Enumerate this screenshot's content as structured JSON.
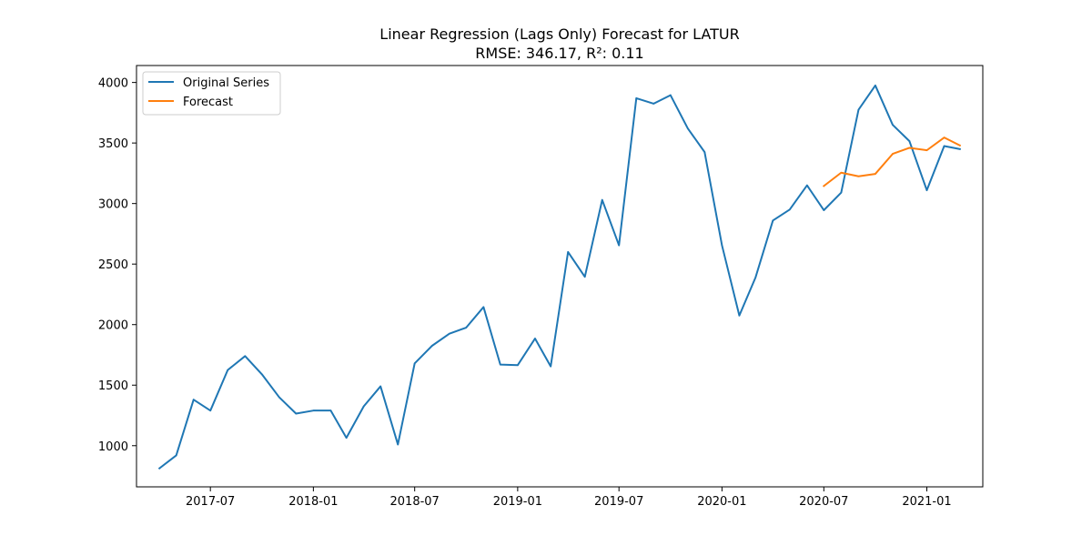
{
  "chart_data": {
    "type": "line",
    "title": "Linear Regression (Lags Only) Forecast for LATUR",
    "subtitle": "RMSE: 346.17, R²: 0.11",
    "xlabel": "",
    "ylabel": "",
    "x_axis_type": "date",
    "xlim": [
      "2017-02-19",
      "2021-04-11"
    ],
    "ylim": [
      660,
      4140
    ],
    "grid": false,
    "legend_position": "top-left",
    "x_tick_labels": [
      "2017-07",
      "2018-01",
      "2018-07",
      "2019-01",
      "2019-07",
      "2020-01",
      "2020-07",
      "2021-01"
    ],
    "x_ticks": [
      "2017-07-01",
      "2018-01-01",
      "2018-07-01",
      "2019-01-01",
      "2019-07-01",
      "2020-01-01",
      "2020-07-01",
      "2021-01-01"
    ],
    "y_ticks": [
      1000,
      1500,
      2000,
      2500,
      3000,
      3500,
      4000
    ],
    "y_tick_labels": [
      "1000",
      "1500",
      "2000",
      "2500",
      "3000",
      "3500",
      "4000"
    ],
    "series": [
      {
        "name": "Original Series",
        "color": "#1f77b4",
        "x": [
          "2017-04-01",
          "2017-05-01",
          "2017-06-01",
          "2017-07-01",
          "2017-08-01",
          "2017-09-01",
          "2017-10-01",
          "2017-11-01",
          "2017-12-01",
          "2018-01-01",
          "2018-02-01",
          "2018-03-01",
          "2018-04-01",
          "2018-05-01",
          "2018-06-01",
          "2018-07-01",
          "2018-08-01",
          "2018-09-01",
          "2018-10-01",
          "2018-11-01",
          "2018-12-01",
          "2019-01-01",
          "2019-02-01",
          "2019-03-01",
          "2019-04-01",
          "2019-05-01",
          "2019-06-01",
          "2019-07-01",
          "2019-08-01",
          "2019-09-01",
          "2019-10-01",
          "2019-11-01",
          "2019-12-01",
          "2020-01-01",
          "2020-02-01",
          "2020-03-01",
          "2020-04-01",
          "2020-05-01",
          "2020-06-01",
          "2020-07-01",
          "2020-08-01",
          "2020-09-01",
          "2020-10-01",
          "2020-11-01",
          "2020-12-01",
          "2021-01-01",
          "2021-02-01",
          "2021-03-01"
        ],
        "values": [
          813,
          920,
          1380,
          1290,
          1625,
          1740,
          1590,
          1400,
          1265,
          1290,
          1290,
          1065,
          1325,
          1490,
          1010,
          1680,
          1825,
          1925,
          1975,
          2145,
          1670,
          1665,
          1885,
          1655,
          2600,
          2395,
          3030,
          2655,
          3870,
          3825,
          3895,
          3620,
          3425,
          2655,
          2075,
          2390,
          2860,
          2950,
          3150,
          2945,
          3090,
          3775,
          3975,
          3650,
          3515,
          3110,
          3475,
          3450
        ]
      },
      {
        "name": "Forecast",
        "color": "#ff7f0e",
        "x": [
          "2020-07-01",
          "2020-08-01",
          "2020-09-01",
          "2020-10-01",
          "2020-11-01",
          "2020-12-01",
          "2021-01-01",
          "2021-02-01",
          "2021-03-01"
        ],
        "values": [
          3145,
          3255,
          3225,
          3245,
          3410,
          3460,
          3440,
          3545,
          3480
        ]
      }
    ]
  }
}
